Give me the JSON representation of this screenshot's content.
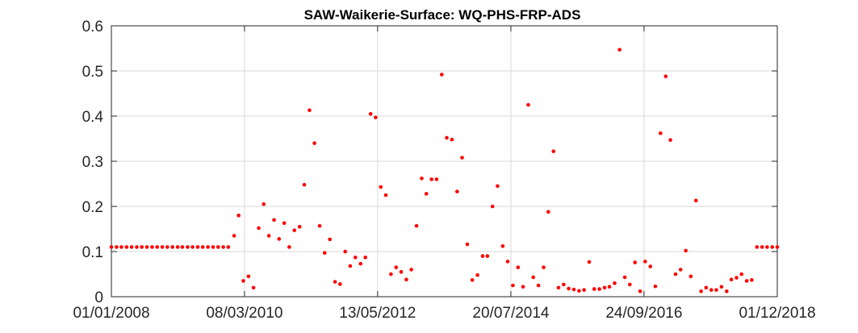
{
  "chart_data": {
    "type": "scatter",
    "title": "SAW-Waikerie-Surface: WQ-PHS-FRP-ADS",
    "xlabel": "",
    "ylabel": "",
    "x_type": "date",
    "x_ticks": [
      "2008-01-01",
      "2010-03-08",
      "2012-05-13",
      "2014-07-20",
      "2016-09-24",
      "2018-12-01"
    ],
    "x_tick_labels": [
      "01/01/2008",
      "08/03/2010",
      "13/05/2012",
      "20/07/2014",
      "24/09/2016",
      "01/12/2018"
    ],
    "xlim": [
      "2008-01-01",
      "2018-12-01"
    ],
    "ylim": [
      0,
      0.6
    ],
    "y_ticks": [
      0,
      0.1,
      0.2,
      0.3,
      0.4,
      0.5,
      0.6
    ],
    "y_tick_labels": [
      "0",
      "0.1",
      "0.2",
      "0.3",
      "0.4",
      "0.5",
      "0.6"
    ],
    "grid": true,
    "marker_color": "#ff0000",
    "series": [
      {
        "points": [
          [
            "2008-01-01",
            0.11
          ],
          [
            "2008-02-01",
            0.11
          ],
          [
            "2008-03-01",
            0.11
          ],
          [
            "2008-04-01",
            0.11
          ],
          [
            "2008-05-01",
            0.11
          ],
          [
            "2008-06-01",
            0.11
          ],
          [
            "2008-07-01",
            0.11
          ],
          [
            "2008-08-01",
            0.11
          ],
          [
            "2008-09-01",
            0.11
          ],
          [
            "2008-10-01",
            0.11
          ],
          [
            "2008-11-01",
            0.11
          ],
          [
            "2008-12-01",
            0.11
          ],
          [
            "2009-01-01",
            0.11
          ],
          [
            "2009-02-01",
            0.11
          ],
          [
            "2009-03-01",
            0.11
          ],
          [
            "2009-04-01",
            0.11
          ],
          [
            "2009-05-01",
            0.11
          ],
          [
            "2009-06-01",
            0.11
          ],
          [
            "2009-07-01",
            0.11
          ],
          [
            "2009-08-01",
            0.11
          ],
          [
            "2009-09-01",
            0.11
          ],
          [
            "2009-10-01",
            0.11
          ],
          [
            "2009-11-01",
            0.11
          ],
          [
            "2009-12-01",
            0.11
          ],
          [
            "2010-01-05",
            0.135
          ],
          [
            "2010-02-01",
            0.18
          ],
          [
            "2010-03-01",
            0.035
          ],
          [
            "2010-04-01",
            0.045
          ],
          [
            "2010-05-01",
            0.02
          ],
          [
            "2010-06-01",
            0.152
          ],
          [
            "2010-07-01",
            0.205
          ],
          [
            "2010-08-01",
            0.135
          ],
          [
            "2010-09-01",
            0.17
          ],
          [
            "2010-10-01",
            0.128
          ],
          [
            "2010-11-01",
            0.163
          ],
          [
            "2010-12-01",
            0.11
          ],
          [
            "2011-01-01",
            0.147
          ],
          [
            "2011-02-01",
            0.155
          ],
          [
            "2011-03-01",
            0.248
          ],
          [
            "2011-04-01",
            0.413
          ],
          [
            "2011-05-01",
            0.34
          ],
          [
            "2011-06-01",
            0.157
          ],
          [
            "2011-07-01",
            0.097
          ],
          [
            "2011-08-01",
            0.127
          ],
          [
            "2011-09-01",
            0.033
          ],
          [
            "2011-10-01",
            0.028
          ],
          [
            "2011-11-01",
            0.1
          ],
          [
            "2011-12-01",
            0.068
          ],
          [
            "2012-01-01",
            0.087
          ],
          [
            "2012-02-01",
            0.073
          ],
          [
            "2012-03-01",
            0.087
          ],
          [
            "2012-04-01",
            0.405
          ],
          [
            "2012-05-01",
            0.397
          ],
          [
            "2012-06-01",
            0.243
          ],
          [
            "2012-07-01",
            0.225
          ],
          [
            "2012-08-01",
            0.05
          ],
          [
            "2012-09-01",
            0.065
          ],
          [
            "2012-10-01",
            0.055
          ],
          [
            "2012-11-01",
            0.038
          ],
          [
            "2012-12-01",
            0.06
          ],
          [
            "2013-01-01",
            0.157
          ],
          [
            "2013-02-01",
            0.262
          ],
          [
            "2013-03-01",
            0.228
          ],
          [
            "2013-04-01",
            0.26
          ],
          [
            "2013-05-01",
            0.26
          ],
          [
            "2013-06-01",
            0.492
          ],
          [
            "2013-07-01",
            0.352
          ],
          [
            "2013-08-01",
            0.348
          ],
          [
            "2013-09-01",
            0.233
          ],
          [
            "2013-10-01",
            0.308
          ],
          [
            "2013-11-01",
            0.116
          ],
          [
            "2013-12-01",
            0.037
          ],
          [
            "2014-01-01",
            0.048
          ],
          [
            "2014-02-01",
            0.09
          ],
          [
            "2014-03-01",
            0.09
          ],
          [
            "2014-04-01",
            0.2
          ],
          [
            "2014-05-01",
            0.245
          ],
          [
            "2014-06-01",
            0.112
          ],
          [
            "2014-07-01",
            0.078
          ],
          [
            "2014-08-01",
            0.025
          ],
          [
            "2014-09-01",
            0.065
          ],
          [
            "2014-10-01",
            0.022
          ],
          [
            "2014-11-01",
            0.425
          ],
          [
            "2014-12-01",
            0.043
          ],
          [
            "2015-01-01",
            0.025
          ],
          [
            "2015-02-01",
            0.065
          ],
          [
            "2015-03-01",
            0.188
          ],
          [
            "2015-04-01",
            0.322
          ],
          [
            "2015-05-01",
            0.02
          ],
          [
            "2015-06-01",
            0.027
          ],
          [
            "2015-07-01",
            0.018
          ],
          [
            "2015-08-01",
            0.016
          ],
          [
            "2015-09-01",
            0.013
          ],
          [
            "2015-10-01",
            0.015
          ],
          [
            "2015-11-01",
            0.077
          ],
          [
            "2015-12-01",
            0.017
          ],
          [
            "2016-01-01",
            0.017
          ],
          [
            "2016-02-01",
            0.02
          ],
          [
            "2016-03-01",
            0.022
          ],
          [
            "2016-04-01",
            0.03
          ],
          [
            "2016-05-01",
            0.547
          ],
          [
            "2016-06-01",
            0.043
          ],
          [
            "2016-07-01",
            0.027
          ],
          [
            "2016-08-01",
            0.076
          ],
          [
            "2016-09-01",
            0.012
          ],
          [
            "2016-10-01",
            0.078
          ],
          [
            "2016-11-01",
            0.067
          ],
          [
            "2016-12-01",
            0.023
          ],
          [
            "2017-01-01",
            0.362
          ],
          [
            "2017-02-01",
            0.488
          ],
          [
            "2017-03-01",
            0.347
          ],
          [
            "2017-04-01",
            0.05
          ],
          [
            "2017-05-01",
            0.06
          ],
          [
            "2017-06-01",
            0.102
          ],
          [
            "2017-07-01",
            0.045
          ],
          [
            "2017-08-01",
            0.213
          ],
          [
            "2017-09-01",
            0.012
          ],
          [
            "2017-10-01",
            0.02
          ],
          [
            "2017-11-01",
            0.015
          ],
          [
            "2017-12-01",
            0.015
          ],
          [
            "2018-01-01",
            0.022
          ],
          [
            "2018-02-01",
            0.012
          ],
          [
            "2018-03-01",
            0.038
          ],
          [
            "2018-04-01",
            0.042
          ],
          [
            "2018-05-01",
            0.05
          ],
          [
            "2018-06-01",
            0.035
          ],
          [
            "2018-07-01",
            0.037
          ],
          [
            "2018-08-01",
            0.11
          ],
          [
            "2018-09-01",
            0.11
          ],
          [
            "2018-10-01",
            0.11
          ],
          [
            "2018-11-01",
            0.11
          ],
          [
            "2018-12-01",
            0.11
          ]
        ]
      }
    ]
  }
}
